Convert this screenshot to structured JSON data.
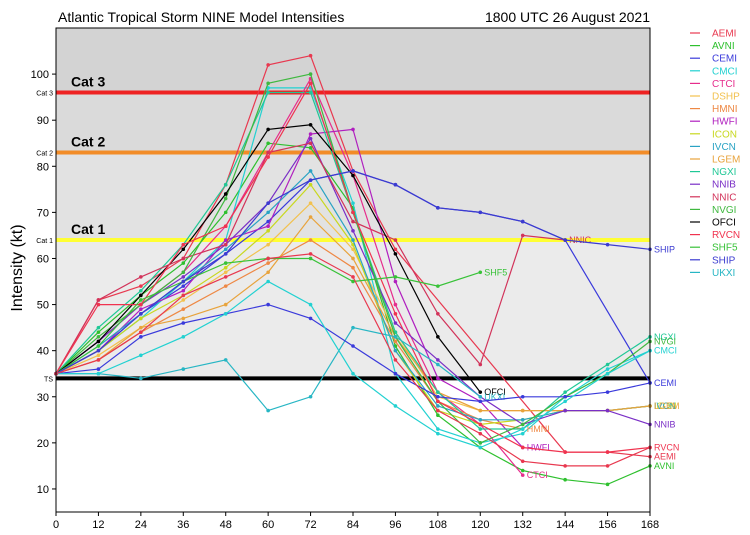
{
  "header": {
    "title": "Atlantic Tropical Storm NINE Model Intensities",
    "datetime": "1800 UTC 26 August 2021"
  },
  "chart_data": {
    "type": "line",
    "title": "Atlantic Tropical Storm NINE Model Intensities",
    "subtitle": "1800 UTC 26 August 2021",
    "xlabel": "",
    "ylabel": "Intensity (kt)",
    "x": [
      0,
      12,
      24,
      36,
      48,
      60,
      72,
      84,
      96,
      108,
      120,
      132,
      144,
      156,
      168
    ],
    "xlim": [
      0,
      168
    ],
    "ylim": [
      5,
      110
    ],
    "x_ticks": [
      0,
      12,
      24,
      36,
      48,
      60,
      72,
      84,
      96,
      108,
      120,
      132,
      144,
      156,
      168
    ],
    "y_ticks": [
      10,
      20,
      30,
      40,
      50,
      60,
      70,
      80,
      90,
      100
    ],
    "grid": false,
    "legend_position": "right",
    "thresholds": [
      {
        "label": "TS",
        "inline_label": "",
        "value": 34,
        "color": "#000000"
      },
      {
        "label": "Cat 1",
        "inline_label": "Cat 1",
        "value": 64,
        "color": "#ffff33"
      },
      {
        "label": "Cat 2",
        "inline_label": "Cat 2",
        "value": 83,
        "color": "#f28c28"
      },
      {
        "label": "Cat 3",
        "inline_label": "Cat 3",
        "value": 96,
        "color": "#ee2222"
      }
    ],
    "bands": [
      {
        "from": 34,
        "to": 64,
        "color": "#ebebeb"
      },
      {
        "from": 64,
        "to": 83,
        "color": "#e2e2e2"
      },
      {
        "from": 83,
        "to": 96,
        "color": "#dadada"
      },
      {
        "from": 96,
        "to": 110,
        "color": "#d3d3d3"
      }
    ],
    "series": [
      {
        "name": "AEMI",
        "color": "#e8384f",
        "end_label": "AEMI",
        "values": [
          35,
          51,
          54,
          60,
          76,
          102,
          104,
          79,
          62,
          null,
          null,
          null,
          18,
          18,
          17
        ]
      },
      {
        "name": "AVNI",
        "color": "#2ec02e",
        "end_label": "AVNI",
        "values": [
          35,
          44,
          52,
          59,
          70,
          85,
          84,
          71,
          41,
          26,
          19,
          14,
          12,
          11,
          15
        ]
      },
      {
        "name": "CEMI",
        "color": "#3a3adb",
        "end_label": "CEMI",
        "values": [
          35,
          40,
          48,
          54,
          61,
          68,
          77,
          79,
          76,
          71,
          70,
          68,
          64,
          null,
          33
        ]
      },
      {
        "name": "CMCI",
        "color": "#22d1d1",
        "end_label": "CMCI",
        "values": [
          35,
          40,
          47,
          55,
          64,
          97,
          97,
          72,
          35,
          23,
          20,
          22,
          30,
          36,
          40
        ]
      },
      {
        "name": "CTCI",
        "color": "#e62d8c",
        "end_label": "CTCI",
        "values": [
          35,
          42,
          50,
          57,
          67,
          83,
          99,
          78,
          50,
          31,
          24,
          13,
          null,
          null,
          null
        ]
      },
      {
        "name": "DSHP",
        "color": "#f2c14e",
        "end_label": "",
        "values": [
          35,
          39,
          45,
          51,
          57,
          63,
          72,
          62,
          44,
          30,
          27,
          27,
          27,
          27,
          28
        ]
      },
      {
        "name": "HMNI",
        "color": "#ee8844",
        "end_label": "HMNI",
        "values": [
          35,
          38,
          44,
          49,
          54,
          59,
          64,
          58,
          42,
          29,
          25,
          23,
          null,
          null,
          null
        ]
      },
      {
        "name": "HWFI",
        "color": "#b01fbf",
        "end_label": "HWFI",
        "values": [
          35,
          40,
          49,
          53,
          64,
          67,
          87,
          88,
          55,
          34,
          29,
          19,
          null,
          null,
          null
        ]
      },
      {
        "name": "ICON",
        "color": "#c8d820",
        "end_label": "ICON",
        "values": [
          35,
          40,
          47,
          52,
          58,
          66,
          76,
          63,
          40,
          27,
          24,
          25,
          27,
          27,
          28
        ]
      },
      {
        "name": "IVCN",
        "color": "#2aa3c4",
        "end_label": "IVCN",
        "values": [
          35,
          41,
          48,
          55,
          62,
          70,
          79,
          64,
          40,
          28,
          25,
          25,
          27,
          27,
          28
        ]
      },
      {
        "name": "LGEM",
        "color": "#e8a33c",
        "end_label": "LGEM",
        "values": [
          35,
          38,
          45,
          47,
          50,
          57,
          69,
          60,
          43,
          31,
          27,
          27,
          27,
          27,
          28
        ]
      },
      {
        "name": "NGXI",
        "color": "#20c896",
        "end_label": "NGXI",
        "values": [
          35,
          45,
          53,
          63,
          76,
          96,
          96,
          70,
          44,
          31,
          23,
          23,
          31,
          37,
          43
        ]
      },
      {
        "name": "NNIB",
        "color": "#7a2fc6",
        "end_label": "NNIB",
        "values": [
          35,
          42,
          50,
          56,
          63,
          72,
          86,
          66,
          46,
          38,
          30,
          24,
          27,
          27,
          24
        ]
      },
      {
        "name": "NNIC",
        "color": "#d2335a",
        "end_label": "NNIC",
        "values": [
          35,
          51,
          56,
          60,
          63,
          83,
          85,
          68,
          64,
          48,
          37,
          65,
          64,
          null,
          null
        ]
      },
      {
        "name": "NVGI",
        "color": "#3fb83f",
        "end_label": "NVGI",
        "values": [
          35,
          43,
          50,
          57,
          73,
          98,
          100,
          70,
          43,
          29,
          20,
          24,
          30,
          35,
          42
        ]
      },
      {
        "name": "OFCI",
        "color": "#000000",
        "end_label": "OFCI",
        "values": [
          35,
          42,
          52,
          62,
          74,
          88,
          89,
          78,
          61,
          43,
          31,
          null,
          null,
          null,
          null
        ]
      },
      {
        "name": "RVCN",
        "color": "#f0334f",
        "end_label": "RVCN",
        "values": [
          35,
          50,
          50,
          63,
          67,
          82,
          98,
          70,
          48,
          29,
          24,
          19,
          18,
          18,
          19
        ]
      },
      {
        "name": "SHF5",
        "color": "#38c238",
        "end_label": "SHF5",
        "values": [
          35,
          41,
          51,
          55,
          59,
          60,
          60,
          55,
          56,
          54,
          57,
          null,
          null,
          null,
          null
        ]
      },
      {
        "name": "SHIP",
        "color": "#3b3bd0",
        "end_label": "SHIP",
        "values": [
          35,
          40,
          48,
          55,
          61,
          72,
          77,
          79,
          76,
          71,
          70,
          68,
          64,
          63,
          62
        ]
      },
      {
        "name": "UKXI",
        "color": "#27b6c4",
        "end_label": "UKXI",
        "values": [
          35,
          35,
          34,
          36,
          38,
          27,
          30,
          45,
          43,
          37,
          30,
          null,
          null,
          null,
          null
        ]
      },
      {
        "name": "",
        "color": "#3a3adb",
        "end_label": "",
        "values": [
          35,
          36,
          43,
          46,
          48,
          50,
          47,
          41,
          35,
          30,
          29,
          30,
          30,
          31,
          33
        ]
      },
      {
        "name": "",
        "color": "#22d1d1",
        "end_label": "",
        "values": [
          35,
          35,
          39,
          43,
          48,
          55,
          50,
          35,
          28,
          22,
          19,
          23,
          29,
          35,
          40
        ]
      },
      {
        "name": "",
        "color": "#e8384f",
        "end_label": "",
        "values": [
          35,
          38,
          44,
          52,
          56,
          60,
          61,
          56,
          38,
          27,
          22,
          16,
          15,
          15,
          19
        ]
      }
    ]
  }
}
